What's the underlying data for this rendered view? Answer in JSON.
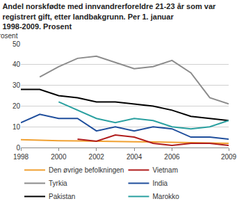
{
  "chart_data": {
    "type": "line",
    "title": "Andel norskfødte med innvandrerforeldre 21-23 år som var registrert gift, etter landbakgrunn. Per 1. januar 1998-2009. Prosent",
    "y_label": "Prosent",
    "x": [
      1998,
      1999,
      2000,
      2001,
      2002,
      2003,
      2004,
      2005,
      2006,
      2007,
      2008,
      2009
    ],
    "series": [
      {
        "name": "Den øvrige befolkningen",
        "color": "#f0a030",
        "values": [
          3.8,
          3.5,
          3.3,
          3.2,
          3.0,
          3.0,
          2.8,
          2.7,
          2.5,
          2.3,
          2.2,
          2.0
        ]
      },
      {
        "name": "Vietnam",
        "color": "#b01c1c",
        "values": [
          null,
          null,
          null,
          4,
          3,
          6,
          5,
          2,
          1,
          2,
          2,
          1
        ]
      },
      {
        "name": "Tyrkia",
        "color": "#8c8c8c",
        "values": [
          null,
          34,
          39,
          43,
          44,
          41,
          38,
          39,
          42,
          36,
          24,
          21
        ]
      },
      {
        "name": "India",
        "color": "#1f4e9c",
        "values": [
          12,
          16,
          14,
          14,
          8,
          10,
          8,
          10,
          9,
          5,
          5,
          4
        ]
      },
      {
        "name": "Pakistan",
        "color": "#000000",
        "values": [
          28,
          28,
          25,
          24,
          22,
          22,
          21,
          20,
          18,
          15,
          14,
          13
        ]
      },
      {
        "name": "Marokko",
        "color": "#2aa0a0",
        "values": [
          null,
          null,
          22,
          18,
          14,
          12,
          14,
          13,
          10,
          9,
          10,
          13
        ]
      }
    ],
    "xlim": [
      1998,
      2009
    ],
    "xticks": [
      1998,
      2000,
      2002,
      2004,
      2006,
      2009
    ],
    "ylim": [
      0,
      50
    ],
    "yticks": [
      0,
      10,
      20,
      30,
      40,
      50
    ],
    "grid": true,
    "legend": "bottom"
  }
}
